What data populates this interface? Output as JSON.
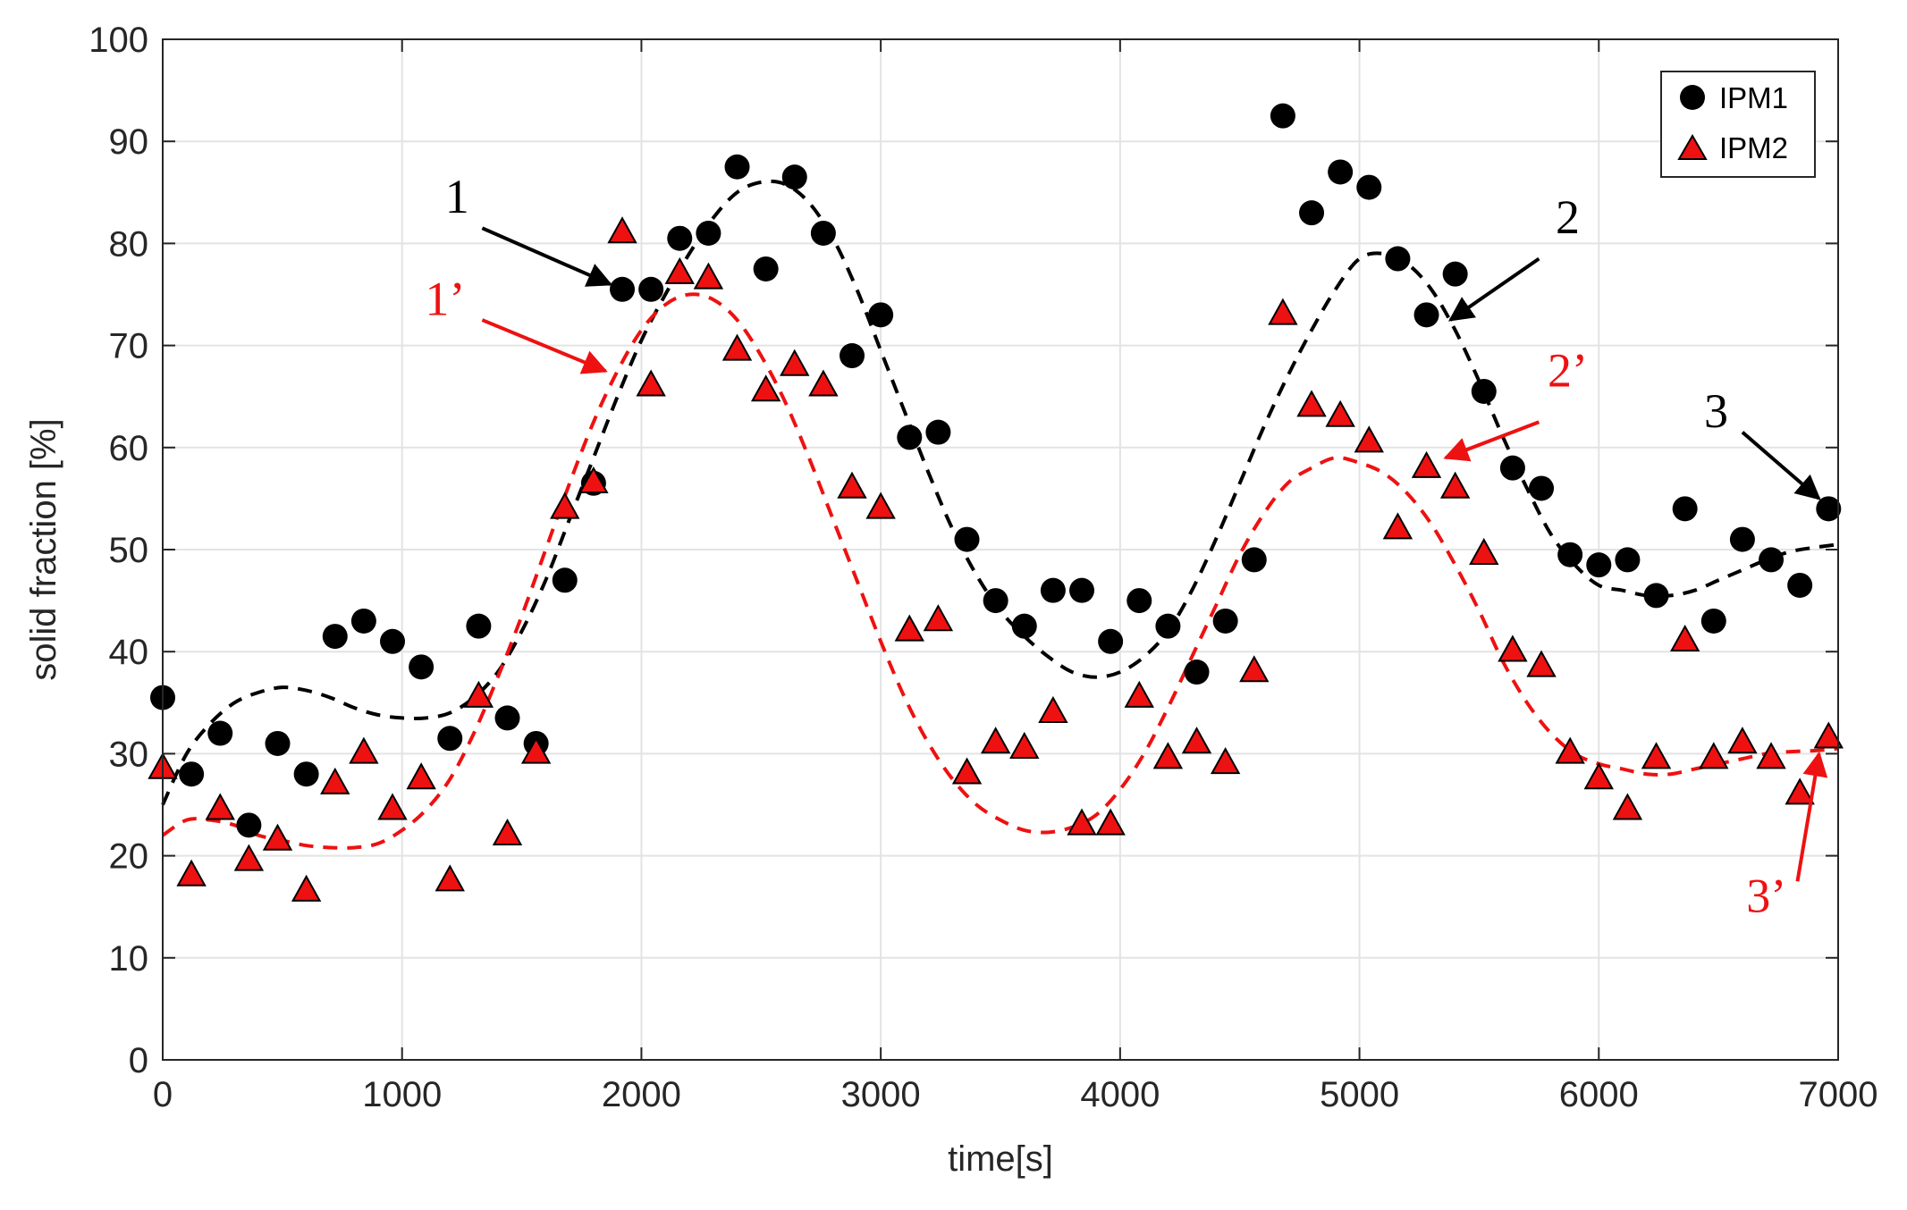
{
  "chart_data": {
    "type": "scatter",
    "xlabel": "time[s]",
    "ylabel": "solid fraction [%]",
    "xlim": [
      0,
      7000
    ],
    "ylim": [
      0,
      100
    ],
    "xticks": [
      "0",
      "1000",
      "2000",
      "3000",
      "4000",
      "5000",
      "6000",
      "7000"
    ],
    "yticks": [
      "0",
      "10",
      "20",
      "30",
      "40",
      "50",
      "60",
      "70",
      "80",
      "90",
      "100"
    ],
    "grid": true,
    "legend_position": "top-right",
    "series": [
      {
        "name": "IPM1",
        "marker": "circle",
        "color": "#000000",
        "x": [
          0,
          120,
          240,
          360,
          480,
          600,
          720,
          840,
          960,
          1080,
          1200,
          1320,
          1440,
          1560,
          1680,
          1800,
          1920,
          2040,
          2160,
          2280,
          2400,
          2520,
          2640,
          2760,
          2880,
          3000,
          3120,
          3240,
          3360,
          3480,
          3600,
          3720,
          3840,
          3960,
          4080,
          4200,
          4320,
          4440,
          4560,
          4680,
          4800,
          4920,
          5040,
          5160,
          5280,
          5400,
          5520,
          5640,
          5760,
          5880,
          6000,
          6120,
          6240,
          6360,
          6480,
          6600,
          6720,
          6840,
          6960
        ],
        "y": [
          35.5,
          28,
          32,
          23,
          31,
          28,
          41.5,
          43,
          41,
          38.5,
          31.5,
          42.5,
          33.5,
          31,
          47,
          56.5,
          75.5,
          75.5,
          80.5,
          81,
          87.5,
          77.5,
          86.5,
          81,
          69,
          73,
          61,
          61.5,
          51,
          45,
          42.5,
          46,
          46,
          41,
          45,
          42.5,
          38,
          43,
          49,
          92.5,
          83,
          87,
          85.5,
          78.5,
          73,
          77,
          65.5,
          58,
          56,
          49.5,
          48.5,
          49,
          45.5,
          54,
          43,
          51,
          49,
          46.5,
          54
        ]
      },
      {
        "name": "IPM2",
        "marker": "triangle",
        "color": "#ee1111",
        "x": [
          0,
          120,
          240,
          360,
          480,
          600,
          720,
          840,
          960,
          1080,
          1200,
          1320,
          1440,
          1560,
          1680,
          1800,
          1920,
          2040,
          2160,
          2280,
          2400,
          2520,
          2640,
          2760,
          2880,
          3000,
          3120,
          3240,
          3360,
          3480,
          3600,
          3720,
          3840,
          3960,
          4080,
          4200,
          4320,
          4440,
          4560,
          4680,
          4800,
          4920,
          5040,
          5160,
          5280,
          5400,
          5520,
          5640,
          5760,
          5880,
          6000,
          6120,
          6240,
          6360,
          6480,
          6600,
          6720,
          6840,
          6960
        ],
        "y": [
          28.5,
          18,
          24.5,
          19.5,
          21.5,
          16.5,
          27,
          30,
          24.5,
          27.5,
          17.5,
          35.5,
          22,
          30,
          54,
          56.5,
          81,
          66,
          77,
          76.5,
          69.5,
          65.5,
          68,
          66,
          56,
          54,
          42,
          43,
          28,
          31,
          30.5,
          34,
          23,
          23,
          35.5,
          29.5,
          31,
          29,
          38,
          73,
          64,
          63,
          60.5,
          52,
          58,
          56,
          49.5,
          40,
          38.5,
          30,
          27.5,
          24.5,
          29.5,
          41,
          29.5,
          31,
          29.5,
          26,
          31.5
        ]
      }
    ],
    "fits": [
      {
        "series": "IPM1",
        "style": "dashed",
        "color": "#000000",
        "x": [
          0,
          100,
          200,
          300,
          400,
          500,
          600,
          700,
          800,
          900,
          1000,
          1100,
          1200,
          1300,
          1400,
          1500,
          1600,
          1700,
          1800,
          1900,
          2000,
          2100,
          2200,
          2300,
          2400,
          2500,
          2600,
          2700,
          2800,
          2900,
          3000,
          3100,
          3200,
          3300,
          3400,
          3500,
          3600,
          3700,
          3800,
          3900,
          4000,
          4100,
          4200,
          4300,
          4400,
          4500,
          4600,
          4700,
          4800,
          4900,
          5000,
          5100,
          5200,
          5300,
          5400,
          5500,
          5600,
          5700,
          5800,
          5900,
          6000,
          6100,
          6200,
          6300,
          6400,
          6500,
          6600,
          6700,
          6800,
          6900,
          7000
        ],
        "y": [
          25,
          30,
          33,
          35,
          36,
          36.5,
          36.2,
          35.5,
          34.5,
          33.8,
          33.5,
          33.5,
          34,
          35.5,
          38,
          42,
          47,
          53,
          59,
          65,
          70.5,
          75,
          79,
          82.5,
          85,
          86,
          85.8,
          84,
          80.5,
          75.5,
          69.5,
          63.5,
          57.5,
          52,
          47.5,
          44,
          41.5,
          39.5,
          38,
          37.5,
          38,
          39.5,
          42,
          46,
          51,
          56.5,
          62,
          67,
          71.5,
          75.5,
          78.5,
          79,
          78,
          75.5,
          71.5,
          66.5,
          61,
          56,
          51.5,
          48.5,
          46.5,
          46,
          45.5,
          45.5,
          46,
          47,
          48,
          49,
          49.8,
          50.2,
          50.5
        ]
      },
      {
        "series": "IPM2",
        "style": "dashed",
        "color": "#ee1111",
        "x": [
          0,
          100,
          200,
          300,
          400,
          500,
          600,
          700,
          800,
          900,
          1000,
          1100,
          1200,
          1300,
          1400,
          1500,
          1600,
          1700,
          1800,
          1900,
          2000,
          2100,
          2200,
          2300,
          2400,
          2500,
          2600,
          2700,
          2800,
          2900,
          3000,
          3100,
          3200,
          3300,
          3400,
          3500,
          3600,
          3700,
          3800,
          3900,
          4000,
          4100,
          4200,
          4300,
          4400,
          4500,
          4600,
          4700,
          4800,
          4900,
          5000,
          5100,
          5200,
          5300,
          5400,
          5500,
          5600,
          5700,
          5800,
          5900,
          6000,
          6100,
          6200,
          6300,
          6400,
          6500,
          6600,
          6700,
          6800,
          6900,
          7000
        ],
        "y": [
          22,
          23.5,
          23.5,
          23,
          22,
          21.5,
          21,
          20.8,
          20.8,
          21.2,
          22.5,
          24.5,
          27.5,
          32,
          37.5,
          43.5,
          50,
          56.5,
          62.5,
          67.5,
          71.5,
          74,
          75,
          74.5,
          72.5,
          69,
          64.5,
          59,
          53,
          47,
          41,
          35.5,
          31,
          27.5,
          25,
          23.5,
          22.5,
          22.3,
          22.8,
          24,
          26.5,
          30,
          34.5,
          39.5,
          44.5,
          49.5,
          53.5,
          56.5,
          58,
          59,
          58.5,
          57.5,
          55.5,
          52.5,
          48.5,
          44,
          39,
          35,
          32,
          30,
          29,
          28.5,
          28,
          28,
          28.5,
          29,
          29.5,
          30,
          30.2,
          30.3,
          30.5
        ]
      }
    ],
    "annotations": [
      {
        "text": "1",
        "color": "#000000",
        "label_at": [
          1230,
          83
        ],
        "arrow_from": [
          1335,
          81.5
        ],
        "arrow_to": [
          1870,
          76
        ]
      },
      {
        "text": "1’",
        "color": "#ee1111",
        "label_at": [
          1180,
          73
        ],
        "arrow_from": [
          1335,
          72.5
        ],
        "arrow_to": [
          1850,
          67.5
        ]
      },
      {
        "text": "2",
        "color": "#000000",
        "label_at": [
          5870,
          81
        ],
        "arrow_from": [
          5750,
          78.5
        ],
        "arrow_to": [
          5380,
          72.5
        ]
      },
      {
        "text": "2’",
        "color": "#ee1111",
        "label_at": [
          5870,
          66
        ],
        "arrow_from": [
          5750,
          62.5
        ],
        "arrow_to": [
          5360,
          59
        ]
      },
      {
        "text": "3",
        "color": "#000000",
        "label_at": [
          6490,
          62
        ],
        "arrow_from": [
          6600,
          61.5
        ],
        "arrow_to": [
          6920,
          55
        ]
      },
      {
        "text": "3’",
        "color": "#ee1111",
        "label_at": [
          6700,
          14.5
        ],
        "arrow_from": [
          6830,
          17.5
        ],
        "arrow_to": [
          6920,
          30
        ]
      }
    ]
  }
}
